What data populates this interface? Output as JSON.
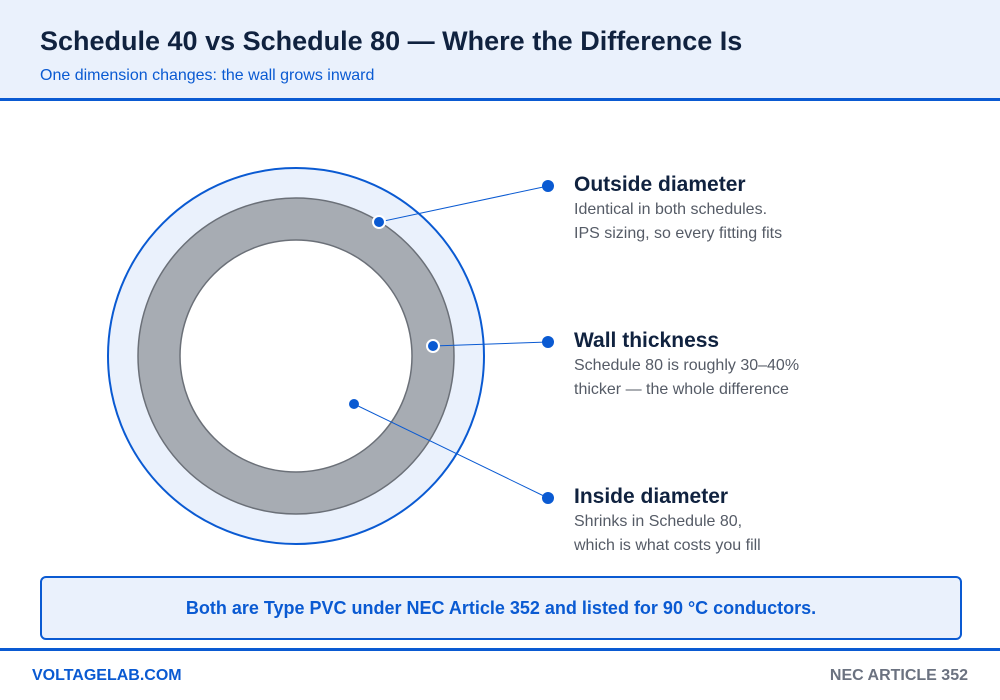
{
  "header": {
    "title": "Schedule 40 vs Schedule 80 — Where the Difference Is",
    "subtitle": "One dimension changes: the wall grows inward"
  },
  "callouts": [
    {
      "title": "Outside diameter",
      "line1": "Identical in both schedules.",
      "line2": "IPS sizing, so every fitting fits"
    },
    {
      "title": "Wall thickness",
      "line1": "Schedule 80 is roughly 30–40%",
      "line2": "thicker — the whole difference"
    },
    {
      "title": "Inside diameter",
      "line1": "Shrinks in Schedule 80,",
      "line2": "which is what costs you fill"
    }
  ],
  "note": "Both are Type PVC under NEC Article 352 and listed for 90 °C conductors.",
  "footer": {
    "left": "VOLTAGELAB.COM",
    "right": "NEC ARTICLE 352"
  },
  "colors": {
    "accent": "#0a5ad2",
    "navy": "#10223f",
    "panel": "#eaf1fc",
    "wall": "#a7acb3",
    "wall_stroke": "#6b7078"
  }
}
